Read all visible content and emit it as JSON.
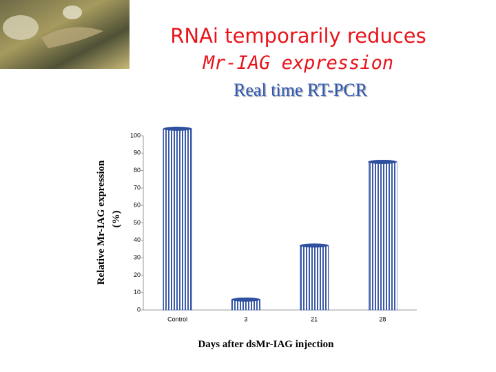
{
  "chart_data": {
    "type": "bar",
    "title": [
      "RNAi temporarily reduces",
      "Mr-IAG expression"
    ],
    "subtitle": "Real time RT-PCR",
    "y_label": [
      "Relative Mr-IAG expression",
      "(%)"
    ],
    "x_label": "Days after dsMr-IAG injection",
    "categories": [
      "Control",
      "3",
      "21",
      "28"
    ],
    "values": [
      104,
      6,
      37,
      85
    ],
    "color": "#2f4f9f",
    "ylim": [
      0,
      100
    ],
    "yticks": [
      0,
      10,
      20,
      30,
      40,
      50,
      60,
      70,
      80,
      90,
      100
    ]
  }
}
